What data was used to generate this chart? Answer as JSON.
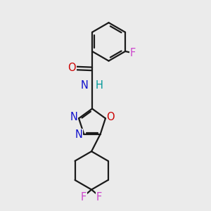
{
  "background_color": "#ebebeb",
  "bond_color": "#1a1a1a",
  "bond_width": 1.6,
  "atom_colors": {
    "F": "#cc44cc",
    "O": "#cc0000",
    "N": "#1111cc",
    "H": "#009999"
  },
  "font_size": 10.5,
  "fig_size": [
    3.0,
    3.0
  ],
  "dpi": 100
}
